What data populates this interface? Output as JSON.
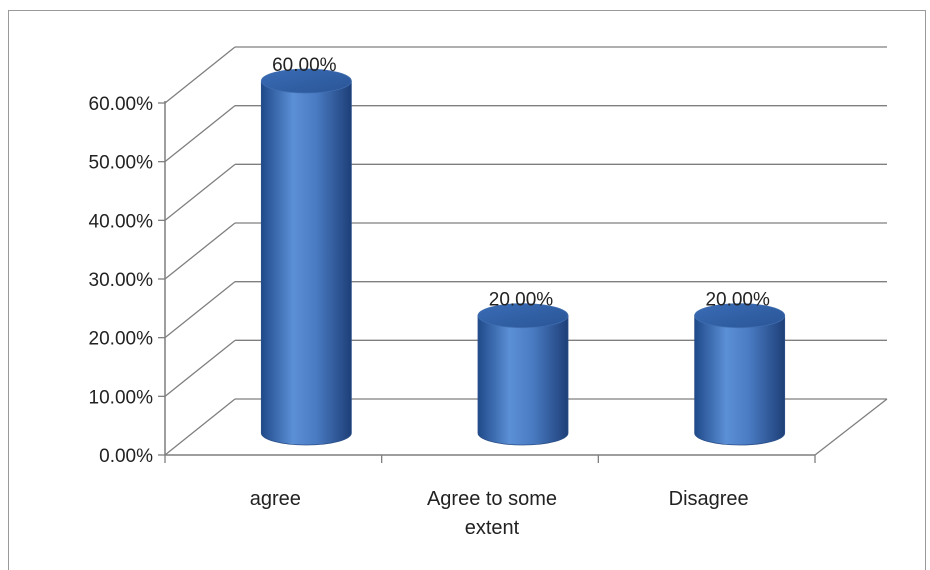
{
  "chart_data": {
    "type": "bar",
    "style": "3d-cylinder",
    "categories": [
      "agree",
      "Agree to some extent",
      "Disagree"
    ],
    "category_lines": [
      [
        "agree"
      ],
      [
        "Agree to some",
        "extent"
      ],
      [
        "Disagree"
      ]
    ],
    "values": [
      0.6,
      0.2,
      0.2
    ],
    "data_labels": [
      "60.00%",
      "20.00%",
      "20.00%"
    ],
    "ylim": [
      0,
      0.6
    ],
    "yticks": [
      0,
      0.1,
      0.2,
      0.3,
      0.4,
      0.5,
      0.6
    ],
    "ytick_labels": [
      "0.00%",
      "10.00%",
      "20.00%",
      "30.00%",
      "40.00%",
      "50.00%",
      "60.00%"
    ],
    "grid": true,
    "legend": "none",
    "bar_color": "#4a7cc4"
  }
}
